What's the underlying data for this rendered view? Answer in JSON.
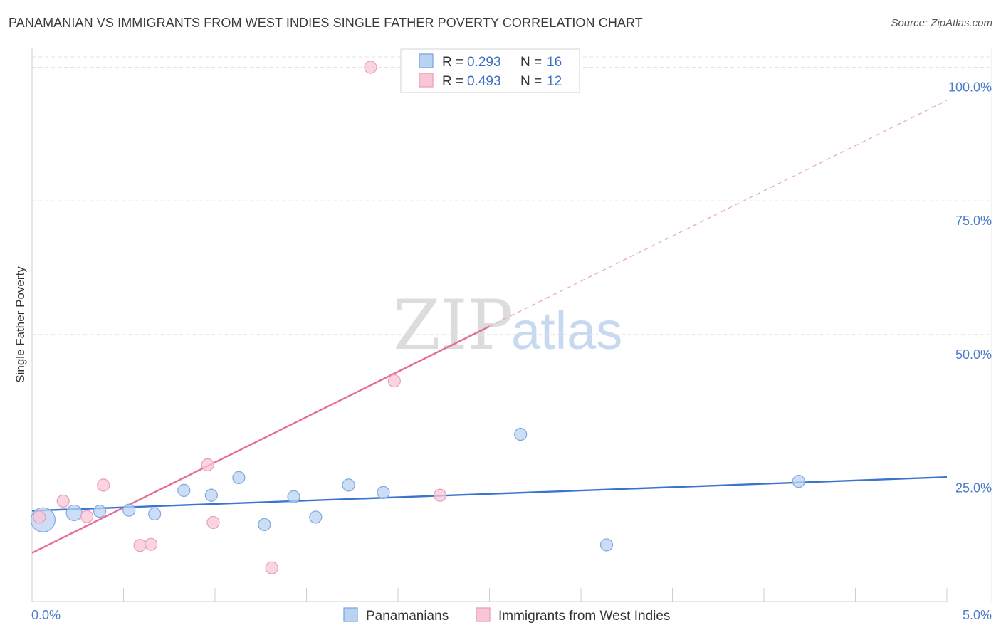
{
  "header": {
    "title": "PANAMANIAN VS IMMIGRANTS FROM WEST INDIES SINGLE FATHER POVERTY CORRELATION CHART",
    "source": "Source: ZipAtlas.com"
  },
  "watermark": {
    "zip": "ZIP",
    "atlas": "atlas"
  },
  "legend": {
    "r_label": "R =",
    "n_label": "N =",
    "rows": [
      {
        "r": "0.293",
        "n": "16"
      },
      {
        "r": "0.493",
        "n": "12"
      }
    ]
  },
  "colors": {
    "blue": "#3b74d0",
    "blue_fill": "#b9d3f3",
    "pink": "#e46e98",
    "pink_fill": "#f8c6d6",
    "grid": "#e3e3e3",
    "axis_text": "#4a7cc9"
  },
  "chart_data": {
    "type": "scatter",
    "title": "PANAMANIAN VS IMMIGRANTS FROM WEST INDIES SINGLE FATHER POVERTY CORRELATION CHART",
    "xlabel": "",
    "ylabel": "Single Father Poverty",
    "xlim": [
      0,
      5
    ],
    "ylim": [
      0,
      103
    ],
    "x_tick_labels": [
      "0.0%",
      "5.0%"
    ],
    "y_ticks": [
      25,
      50,
      75,
      100
    ],
    "y_tick_labels": [
      "25.0%",
      "50.0%",
      "75.0%",
      "100.0%"
    ],
    "grid": true,
    "legend_position": "bottom-center",
    "series": [
      {
        "name": "Panamanians",
        "color": "#3b74d0",
        "x": [
          0.06,
          0.23,
          0.37,
          0.53,
          0.67,
          0.83,
          0.98,
          1.13,
          1.27,
          1.43,
          1.55,
          1.73,
          1.92,
          2.67,
          3.14,
          4.19
        ],
        "y": [
          15.3,
          16.6,
          16.9,
          17.1,
          16.4,
          20.8,
          19.9,
          23.2,
          14.4,
          19.6,
          15.8,
          21.8,
          20.4,
          31.3,
          10.6,
          22.5
        ],
        "size": [
          3,
          2,
          1,
          1,
          1,
          1,
          1,
          1,
          1,
          1,
          1,
          1,
          1,
          1,
          1,
          1
        ],
        "trend": {
          "x": [
            0,
            5
          ],
          "y": [
            17.0,
            23.3
          ]
        }
      },
      {
        "name": "Immigrants from West Indies",
        "color": "#e46e98",
        "x": [
          0.04,
          0.17,
          0.3,
          0.39,
          0.59,
          0.65,
          0.96,
          0.99,
          1.31,
          1.85,
          1.98,
          2.23
        ],
        "y": [
          15.8,
          18.8,
          15.9,
          21.8,
          10.5,
          10.7,
          25.6,
          14.8,
          6.3,
          100.0,
          41.3,
          19.9
        ],
        "size": [
          1,
          1,
          1,
          1,
          1,
          1,
          1,
          1,
          1,
          1,
          1,
          1
        ],
        "trend": {
          "x": [
            0,
            2.5
          ],
          "y": [
            9.1,
            51.5
          ]
        },
        "trend_extension": {
          "x": [
            2.5,
            5
          ],
          "y": [
            51.5,
            93.8
          ]
        }
      }
    ]
  }
}
